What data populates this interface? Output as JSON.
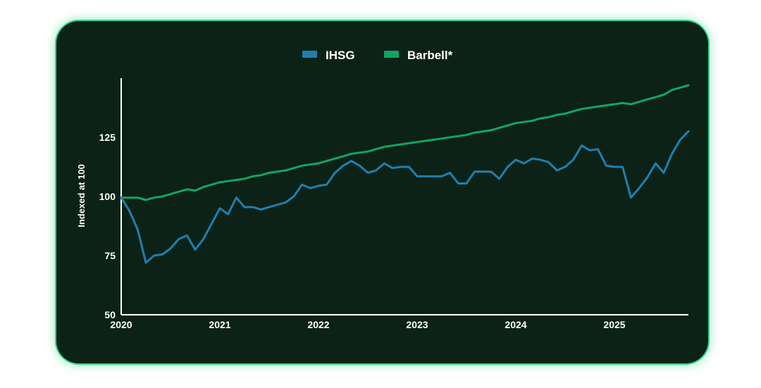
{
  "chart_data": {
    "type": "line",
    "ylabel": "Indexed at 100",
    "xlim": [
      2020,
      2025.75
    ],
    "ylim": [
      50,
      150
    ],
    "x_ticks": [
      "2020",
      "2021",
      "2022",
      "2023",
      "2024",
      "2025"
    ],
    "y_ticks": [
      "50",
      "75",
      "100",
      "125"
    ],
    "legend_position": "top-center",
    "grid": false,
    "x": [
      2020.0,
      2020.083,
      2020.167,
      2020.25,
      2020.333,
      2020.417,
      2020.5,
      2020.583,
      2020.667,
      2020.75,
      2020.833,
      2020.917,
      2021.0,
      2021.083,
      2021.167,
      2021.25,
      2021.333,
      2021.417,
      2021.5,
      2021.583,
      2021.667,
      2021.75,
      2021.833,
      2021.917,
      2022.0,
      2022.083,
      2022.167,
      2022.25,
      2022.333,
      2022.417,
      2022.5,
      2022.583,
      2022.667,
      2022.75,
      2022.833,
      2022.917,
      2023.0,
      2023.083,
      2023.167,
      2023.25,
      2023.333,
      2023.417,
      2023.5,
      2023.583,
      2023.667,
      2023.75,
      2023.833,
      2023.917,
      2024.0,
      2024.083,
      2024.167,
      2024.25,
      2024.333,
      2024.417,
      2024.5,
      2024.583,
      2024.667,
      2024.75,
      2024.833,
      2024.917,
      2025.0,
      2025.083,
      2025.167,
      2025.25,
      2025.333,
      2025.417,
      2025.5,
      2025.583,
      2025.667,
      2025.75
    ],
    "series": [
      {
        "name": "IHSG",
        "color": "#1f7fb0",
        "values": [
          99.5,
          94,
          86,
          72,
          75,
          75.5,
          78,
          82,
          83.5,
          77.5,
          82,
          88.5,
          95,
          92.5,
          99.5,
          95.5,
          95.5,
          94.5,
          95.5,
          96.5,
          97.5,
          100,
          105,
          103.5,
          104.5,
          105,
          110,
          113,
          115,
          113,
          110,
          111,
          114,
          112,
          112.5,
          112.5,
          108.5,
          108.5,
          108.5,
          108.5,
          110,
          105.5,
          105.5,
          110.5,
          110.5,
          110.5,
          107.5,
          112.5,
          115.5,
          114,
          116,
          115.5,
          114.5,
          111,
          112.5,
          115.5,
          121.5,
          119.5,
          120,
          113,
          112.5,
          112.5,
          99.5,
          103.5,
          108,
          114,
          110,
          118,
          124,
          127.5
        ]
      },
      {
        "name": "Barbell*",
        "color": "#10a564",
        "values": [
          99.5,
          99.5,
          99.5,
          98.5,
          99.5,
          100,
          101,
          102,
          103,
          102.5,
          104,
          105,
          106,
          106.5,
          107,
          107.5,
          108.5,
          109,
          110,
          110.5,
          111,
          112,
          113,
          113.5,
          114,
          115,
          116,
          117,
          118,
          118.5,
          119,
          120,
          121,
          121.5,
          122,
          122.5,
          123,
          123.5,
          124,
          124.5,
          125,
          125.5,
          126,
          127,
          127.5,
          128,
          129,
          130,
          131,
          131.5,
          132,
          133,
          133.5,
          134.5,
          135,
          136,
          137,
          137.5,
          138,
          138.5,
          139,
          139.5,
          139,
          140,
          141,
          142,
          143,
          145,
          146,
          147
        ]
      }
    ]
  }
}
